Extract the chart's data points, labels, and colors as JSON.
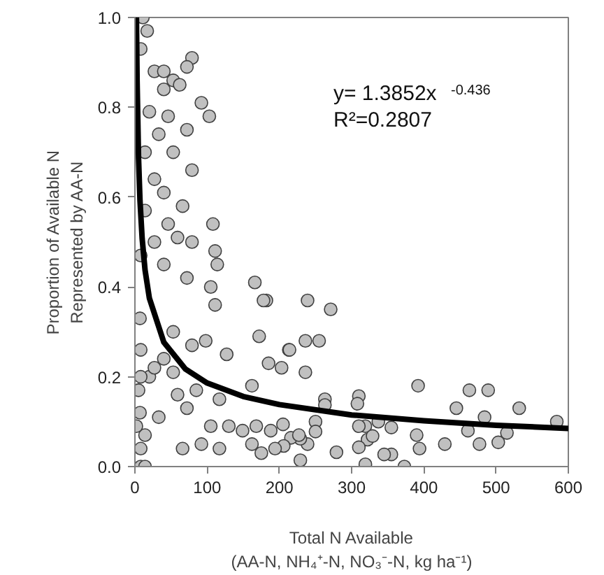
{
  "chart_data": {
    "type": "scatter",
    "xlabel": "Total N Available\n(AA-N, NH₄⁺-N, NO₃⁻-N, kg ha⁻¹)",
    "ylabel": "Proportion of Available N\nRepresented by AA-N",
    "annotations": [
      "y= 1.3852x$^{-0.436}$",
      "R²=0.2807"
    ],
    "xlim": [
      0,
      600
    ],
    "ylim": [
      0,
      1
    ],
    "xticks": [
      0,
      100,
      200,
      300,
      400,
      500,
      600
    ],
    "yticks": [
      {
        "value": 0,
        "label": "0.0"
      },
      {
        "value": 0.2,
        "label": "0.2"
      },
      {
        "value": 0.4,
        "label": "0.4"
      },
      {
        "value": 0.6,
        "label": "0.6"
      },
      {
        "value": 0.8,
        "label": "0.8"
      },
      {
        "value": 1,
        "label": "1.0"
      }
    ],
    "grid": false,
    "marker": "circle",
    "series": [
      {
        "color": "#c0c0c0",
        "x": [
          239,
          271,
          236,
          255,
          236,
          213,
          203,
          392,
          463,
          489,
          445,
          532,
          584,
          484,
          461,
          515,
          503,
          477,
          429,
          390,
          394,
          373,
          355,
          345,
          355,
          337,
          319,
          310,
          308,
          310,
          322,
          329,
          319,
          310,
          279,
          263,
          263,
          250,
          250,
          239,
          229,
          229,
          216,
          206,
          205,
          11,
          17,
          8,
          79,
          72,
          92,
          103,
          27,
          40,
          53,
          62,
          40,
          20,
          46,
          72,
          33,
          14,
          53,
          79,
          27,
          40,
          66,
          14,
          108,
          46,
          27,
          59,
          79,
          111,
          114,
          8,
          40,
          166,
          182,
          105,
          72,
          7,
          111,
          178,
          172,
          127,
          185,
          214,
          162,
          59,
          85,
          117,
          7,
          33,
          72,
          105,
          130,
          66,
          92,
          117,
          162,
          175,
          194,
          14,
          8,
          14,
          8,
          20,
          40,
          79,
          98,
          53,
          8,
          8,
          27,
          53,
          149,
          168,
          188,
          227,
          2,
          5
        ],
        "values": [
          0.37,
          0.35,
          0.28,
          0.28,
          0.21,
          0.26,
          0.22,
          0.18,
          0.17,
          0.17,
          0.13,
          0.13,
          0.1,
          0.11,
          0.08,
          0.075,
          0.054,
          0.05,
          0.05,
          0.07,
          0.04,
          0.0,
          0.027,
          0.027,
          0.087,
          0.1,
          0.09,
          0.157,
          0.14,
          0.09,
          0.06,
          0.068,
          0.005,
          0.043,
          0.032,
          0.15,
          0.137,
          0.1,
          0.078,
          0.05,
          0.014,
          0.062,
          0.064,
          0.046,
          0.094,
          1.0,
          0.97,
          0.93,
          0.91,
          0.89,
          0.81,
          0.78,
          0.88,
          0.88,
          0.86,
          0.85,
          0.84,
          0.79,
          0.78,
          0.75,
          0.74,
          0.7,
          0.7,
          0.66,
          0.64,
          0.61,
          0.58,
          0.57,
          0.54,
          0.54,
          0.5,
          0.51,
          0.5,
          0.48,
          0.45,
          0.47,
          0.45,
          0.41,
          0.37,
          0.4,
          0.42,
          0.33,
          0.36,
          0.37,
          0.29,
          0.25,
          0.23,
          0.26,
          0.18,
          0.16,
          0.17,
          0.15,
          0.12,
          0.11,
          0.13,
          0.09,
          0.09,
          0.04,
          0.05,
          0.04,
          0.05,
          0.03,
          0.04,
          0.07,
          0.0,
          0.0,
          0.04,
          0.2,
          0.24,
          0.27,
          0.28,
          0.3,
          0.2,
          0.26,
          0.22,
          0.21,
          0.08,
          0.09,
          0.08,
          0.07,
          0.09,
          0.17
        ]
      },
      {
        "type": "line",
        "color": "#000000",
        "marker": "none",
        "x": [
          2.1,
          3,
          5,
          7,
          10,
          14,
          20,
          40,
          70,
          100,
          150,
          200,
          300,
          400,
          500,
          600
        ],
        "values": [
          1.0,
          0.858,
          0.687,
          0.593,
          0.508,
          0.438,
          0.375,
          0.277,
          0.217,
          0.186,
          0.156,
          0.138,
          0.115,
          0.102,
          0.092,
          0.085
        ]
      }
    ]
  }
}
